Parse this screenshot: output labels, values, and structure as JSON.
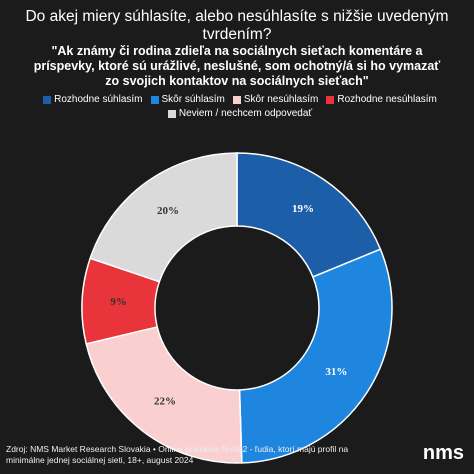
{
  "chart_data": {
    "type": "donut",
    "title": "Do akej miery súhlasíte, alebo nesúhlasíte s nižšie uvedeným tvrdením?",
    "subtitle": "\"Ak známy či rodina zdieľa na sociálnych sieťach komentáre a príspevky, ktoré sú urážlivé, neslušné, som ochotný/á si ho vymazať zo svojich kontaktov na sociálnych sieťach\"",
    "categories": [
      "Rozhodne súhlasím",
      "Skôr súhlasím",
      "Skôr nesúhlasím",
      "Rozhodne nesúhlasím",
      "Neviem / nechcem odpovedať"
    ],
    "values": [
      19,
      31,
      22,
      9,
      20
    ],
    "value_labels": [
      "19%",
      "31%",
      "22%",
      "9%",
      "20%"
    ],
    "colors": [
      "#1c5ea8",
      "#1f86e0",
      "#f9cfcf",
      "#e8343a",
      "#dadada"
    ],
    "label_colors": [
      "#ffffff",
      "#ffffff",
      "#333333",
      "#333333",
      "#333333"
    ],
    "source": "Zdroj: NMS Market Research Slovakia • Online prieskum N=982 - ľudia, ktorí majú profil na minimálne jednej sociálnej sieti, 18+, august 2024",
    "logo": "nms"
  }
}
